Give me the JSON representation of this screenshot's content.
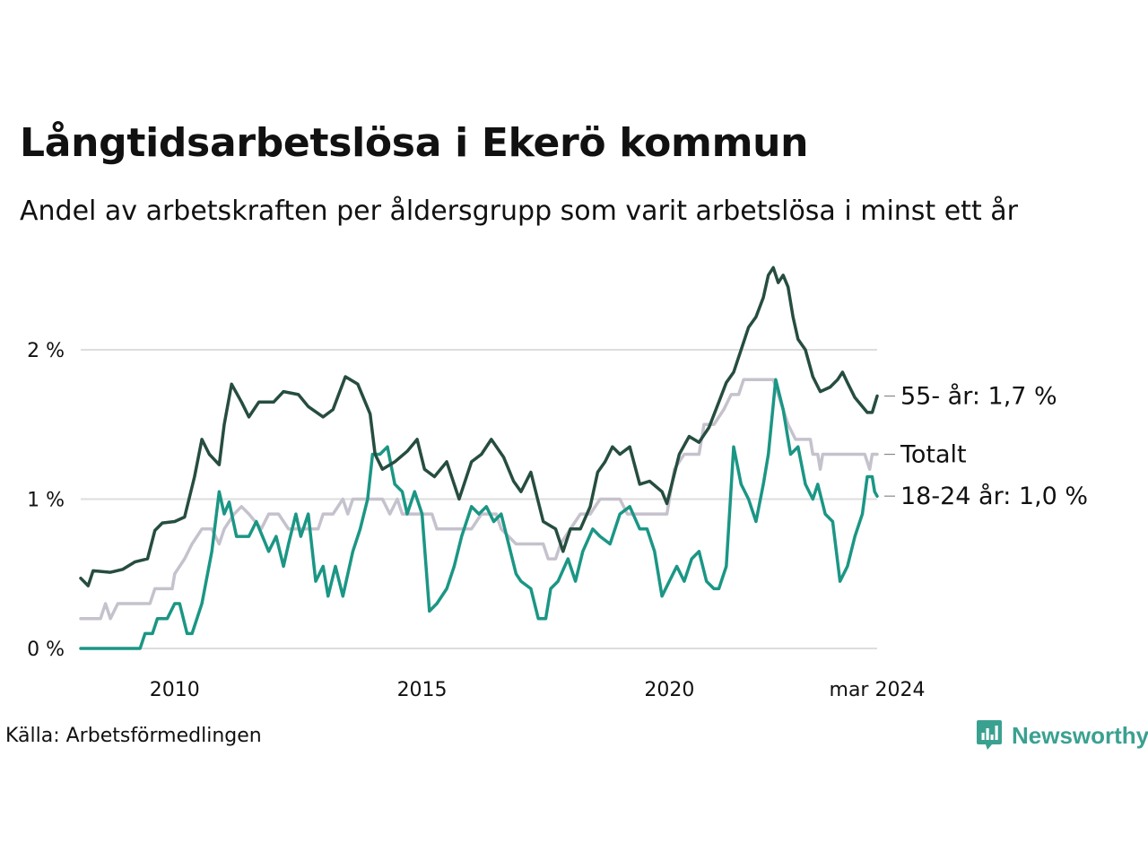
{
  "title": "Långtidsarbetslösa i Ekerö kommun",
  "subtitle": "Andel av arbetskraften per åldersgrupp som varit arbetslösa i minst ett år",
  "source": "Källa: Arbetsförmedlingen",
  "brand": "Newsworthy",
  "icon": "newsworthy-logo-icon",
  "colors": {
    "dark": "#264d40",
    "total": "#c5c2cd",
    "young": "#1b9685",
    "grid": "#dddddd",
    "brand": "#3aa191"
  },
  "chart_data": {
    "type": "line",
    "title": "Långtidsarbetslösa i Ekerö kommun",
    "xlabel": "",
    "ylabel": "",
    "x_unit": "years",
    "xlim": [
      2008.1,
      2024.2
    ],
    "ylim": [
      0,
      2.0
    ],
    "y_ticks": [
      {
        "value": 0,
        "label": "0 %"
      },
      {
        "value": 1,
        "label": "1 %"
      },
      {
        "value": 2,
        "label": "2 %"
      }
    ],
    "x_ticks": [
      {
        "value": 2010,
        "label": "2010"
      },
      {
        "value": 2015,
        "label": "2015"
      },
      {
        "value": 2020,
        "label": "2020"
      },
      {
        "value": 2024.2,
        "label": "mar 2024"
      }
    ],
    "grid": true,
    "series": [
      {
        "name": "55- år",
        "end_label": "55- år: 1,7 %",
        "color_key": "dark",
        "points": [
          [
            2008.1,
            0.47
          ],
          [
            2008.25,
            0.42
          ],
          [
            2008.35,
            0.52
          ],
          [
            2008.7,
            0.51
          ],
          [
            2008.95,
            0.53
          ],
          [
            2009.2,
            0.58
          ],
          [
            2009.45,
            0.6
          ],
          [
            2009.6,
            0.79
          ],
          [
            2009.75,
            0.84
          ],
          [
            2010.0,
            0.85
          ],
          [
            2010.2,
            0.88
          ],
          [
            2010.4,
            1.15
          ],
          [
            2010.55,
            1.4
          ],
          [
            2010.7,
            1.3
          ],
          [
            2010.9,
            1.23
          ],
          [
            2011.0,
            1.5
          ],
          [
            2011.15,
            1.77
          ],
          [
            2011.35,
            1.65
          ],
          [
            2011.5,
            1.55
          ],
          [
            2011.7,
            1.65
          ],
          [
            2012.0,
            1.65
          ],
          [
            2012.2,
            1.72
          ],
          [
            2012.5,
            1.7
          ],
          [
            2012.7,
            1.62
          ],
          [
            2013.0,
            1.55
          ],
          [
            2013.2,
            1.6
          ],
          [
            2013.45,
            1.82
          ],
          [
            2013.7,
            1.77
          ],
          [
            2013.95,
            1.57
          ],
          [
            2014.05,
            1.3
          ],
          [
            2014.2,
            1.2
          ],
          [
            2014.45,
            1.25
          ],
          [
            2014.7,
            1.32
          ],
          [
            2014.9,
            1.4
          ],
          [
            2015.05,
            1.2
          ],
          [
            2015.25,
            1.15
          ],
          [
            2015.5,
            1.25
          ],
          [
            2015.75,
            1.0
          ],
          [
            2016.0,
            1.25
          ],
          [
            2016.2,
            1.3
          ],
          [
            2016.4,
            1.4
          ],
          [
            2016.65,
            1.28
          ],
          [
            2016.85,
            1.12
          ],
          [
            2017.0,
            1.05
          ],
          [
            2017.2,
            1.18
          ],
          [
            2017.45,
            0.85
          ],
          [
            2017.7,
            0.8
          ],
          [
            2017.85,
            0.65
          ],
          [
            2018.0,
            0.8
          ],
          [
            2018.2,
            0.8
          ],
          [
            2018.4,
            0.95
          ],
          [
            2018.55,
            1.18
          ],
          [
            2018.7,
            1.25
          ],
          [
            2018.85,
            1.35
          ],
          [
            2019.0,
            1.3
          ],
          [
            2019.2,
            1.35
          ],
          [
            2019.4,
            1.1
          ],
          [
            2019.6,
            1.12
          ],
          [
            2019.85,
            1.05
          ],
          [
            2019.95,
            0.97
          ],
          [
            2020.2,
            1.3
          ],
          [
            2020.4,
            1.42
          ],
          [
            2020.6,
            1.38
          ],
          [
            2020.8,
            1.48
          ],
          [
            2021.0,
            1.65
          ],
          [
            2021.15,
            1.78
          ],
          [
            2021.3,
            1.85
          ],
          [
            2021.5,
            2.05
          ],
          [
            2021.6,
            2.15
          ],
          [
            2021.75,
            2.22
          ],
          [
            2021.9,
            2.35
          ],
          [
            2022.0,
            2.5
          ],
          [
            2022.1,
            2.55
          ],
          [
            2022.2,
            2.45
          ],
          [
            2022.3,
            2.5
          ],
          [
            2022.4,
            2.42
          ],
          [
            2022.5,
            2.22
          ],
          [
            2022.6,
            2.07
          ],
          [
            2022.75,
            2.0
          ],
          [
            2022.9,
            1.82
          ],
          [
            2023.05,
            1.72
          ],
          [
            2023.25,
            1.75
          ],
          [
            2023.4,
            1.8
          ],
          [
            2023.5,
            1.85
          ],
          [
            2023.6,
            1.78
          ],
          [
            2023.75,
            1.68
          ],
          [
            2023.9,
            1.62
          ],
          [
            2024.0,
            1.58
          ],
          [
            2024.1,
            1.58
          ],
          [
            2024.2,
            1.69
          ]
        ]
      },
      {
        "name": "Totalt",
        "end_label": "Totalt",
        "color_key": "total",
        "points": [
          [
            2008.1,
            0.2
          ],
          [
            2008.5,
            0.2
          ],
          [
            2008.6,
            0.3
          ],
          [
            2008.7,
            0.2
          ],
          [
            2008.85,
            0.3
          ],
          [
            2009.5,
            0.3
          ],
          [
            2009.6,
            0.4
          ],
          [
            2009.95,
            0.4
          ],
          [
            2010.0,
            0.5
          ],
          [
            2010.2,
            0.6
          ],
          [
            2010.35,
            0.7
          ],
          [
            2010.55,
            0.8
          ],
          [
            2010.75,
            0.8
          ],
          [
            2010.9,
            0.7
          ],
          [
            2011.0,
            0.8
          ],
          [
            2011.2,
            0.9
          ],
          [
            2011.35,
            0.95
          ],
          [
            2011.5,
            0.9
          ],
          [
            2011.75,
            0.8
          ],
          [
            2011.9,
            0.9
          ],
          [
            2012.1,
            0.9
          ],
          [
            2012.3,
            0.8
          ],
          [
            2012.9,
            0.8
          ],
          [
            2013.0,
            0.9
          ],
          [
            2013.2,
            0.9
          ],
          [
            2013.4,
            1.0
          ],
          [
            2013.5,
            0.9
          ],
          [
            2013.6,
            1.0
          ],
          [
            2014.0,
            1.0
          ],
          [
            2014.2,
            1.0
          ],
          [
            2014.35,
            0.9
          ],
          [
            2014.5,
            1.0
          ],
          [
            2014.6,
            0.9
          ],
          [
            2015.2,
            0.9
          ],
          [
            2015.3,
            0.8
          ],
          [
            2016.0,
            0.8
          ],
          [
            2016.2,
            0.9
          ],
          [
            2016.5,
            0.9
          ],
          [
            2016.6,
            0.8
          ],
          [
            2016.9,
            0.7
          ],
          [
            2017.0,
            0.7
          ],
          [
            2017.1,
            0.7
          ],
          [
            2017.45,
            0.7
          ],
          [
            2017.55,
            0.6
          ],
          [
            2017.7,
            0.6
          ],
          [
            2017.8,
            0.7
          ],
          [
            2018.0,
            0.8
          ],
          [
            2018.2,
            0.9
          ],
          [
            2018.4,
            0.9
          ],
          [
            2018.6,
            1.0
          ],
          [
            2019.0,
            1.0
          ],
          [
            2019.15,
            0.9
          ],
          [
            2019.95,
            0.9
          ],
          [
            2020.1,
            1.2
          ],
          [
            2020.3,
            1.3
          ],
          [
            2020.6,
            1.3
          ],
          [
            2020.7,
            1.5
          ],
          [
            2020.9,
            1.5
          ],
          [
            2021.1,
            1.6
          ],
          [
            2021.25,
            1.7
          ],
          [
            2021.4,
            1.7
          ],
          [
            2021.5,
            1.8
          ],
          [
            2022.1,
            1.8
          ],
          [
            2022.2,
            1.7
          ],
          [
            2022.4,
            1.5
          ],
          [
            2022.55,
            1.4
          ],
          [
            2022.85,
            1.4
          ],
          [
            2022.9,
            1.3
          ],
          [
            2023.0,
            1.3
          ],
          [
            2023.05,
            1.2
          ],
          [
            2023.1,
            1.3
          ],
          [
            2023.95,
            1.3
          ],
          [
            2024.05,
            1.2
          ],
          [
            2024.1,
            1.3
          ],
          [
            2024.2,
            1.3
          ]
        ]
      },
      {
        "name": "18-24 år",
        "end_label": "18-24 år: 1,0 %",
        "color_key": "young",
        "points": [
          [
            2008.1,
            0.0
          ],
          [
            2009.3,
            0.0
          ],
          [
            2009.4,
            0.1
          ],
          [
            2009.55,
            0.1
          ],
          [
            2009.65,
            0.2
          ],
          [
            2009.85,
            0.2
          ],
          [
            2010.0,
            0.3
          ],
          [
            2010.1,
            0.3
          ],
          [
            2010.25,
            0.1
          ],
          [
            2010.35,
            0.1
          ],
          [
            2010.55,
            0.3
          ],
          [
            2010.75,
            0.65
          ],
          [
            2010.9,
            1.05
          ],
          [
            2011.0,
            0.9
          ],
          [
            2011.1,
            0.98
          ],
          [
            2011.25,
            0.75
          ],
          [
            2011.5,
            0.75
          ],
          [
            2011.65,
            0.85
          ],
          [
            2011.9,
            0.65
          ],
          [
            2012.05,
            0.75
          ],
          [
            2012.2,
            0.55
          ],
          [
            2012.3,
            0.7
          ],
          [
            2012.45,
            0.9
          ],
          [
            2012.55,
            0.75
          ],
          [
            2012.7,
            0.9
          ],
          [
            2012.85,
            0.45
          ],
          [
            2013.0,
            0.55
          ],
          [
            2013.1,
            0.35
          ],
          [
            2013.25,
            0.55
          ],
          [
            2013.4,
            0.35
          ],
          [
            2013.6,
            0.65
          ],
          [
            2013.75,
            0.8
          ],
          [
            2013.9,
            1.0
          ],
          [
            2014.0,
            1.3
          ],
          [
            2014.15,
            1.3
          ],
          [
            2014.3,
            1.35
          ],
          [
            2014.45,
            1.1
          ],
          [
            2014.6,
            1.05
          ],
          [
            2014.7,
            0.9
          ],
          [
            2014.85,
            1.05
          ],
          [
            2015.0,
            0.9
          ],
          [
            2015.15,
            0.25
          ],
          [
            2015.3,
            0.3
          ],
          [
            2015.5,
            0.4
          ],
          [
            2015.65,
            0.55
          ],
          [
            2015.8,
            0.75
          ],
          [
            2016.0,
            0.95
          ],
          [
            2016.15,
            0.9
          ],
          [
            2016.3,
            0.95
          ],
          [
            2016.45,
            0.85
          ],
          [
            2016.6,
            0.9
          ],
          [
            2016.75,
            0.7
          ],
          [
            2016.9,
            0.5
          ],
          [
            2017.0,
            0.45
          ],
          [
            2017.2,
            0.4
          ],
          [
            2017.35,
            0.2
          ],
          [
            2017.5,
            0.2
          ],
          [
            2017.6,
            0.4
          ],
          [
            2017.75,
            0.45
          ],
          [
            2017.95,
            0.6
          ],
          [
            2018.1,
            0.45
          ],
          [
            2018.25,
            0.65
          ],
          [
            2018.45,
            0.8
          ],
          [
            2018.6,
            0.75
          ],
          [
            2018.8,
            0.7
          ],
          [
            2019.0,
            0.9
          ],
          [
            2019.2,
            0.95
          ],
          [
            2019.4,
            0.8
          ],
          [
            2019.55,
            0.8
          ],
          [
            2019.7,
            0.65
          ],
          [
            2019.85,
            0.35
          ],
          [
            2020.0,
            0.45
          ],
          [
            2020.15,
            0.55
          ],
          [
            2020.3,
            0.45
          ],
          [
            2020.45,
            0.6
          ],
          [
            2020.6,
            0.65
          ],
          [
            2020.75,
            0.45
          ],
          [
            2020.9,
            0.4
          ],
          [
            2021.0,
            0.4
          ],
          [
            2021.15,
            0.55
          ],
          [
            2021.3,
            1.35
          ],
          [
            2021.45,
            1.1
          ],
          [
            2021.6,
            1.0
          ],
          [
            2021.75,
            0.85
          ],
          [
            2021.9,
            1.1
          ],
          [
            2022.0,
            1.3
          ],
          [
            2022.15,
            1.8
          ],
          [
            2022.3,
            1.6
          ],
          [
            2022.45,
            1.3
          ],
          [
            2022.6,
            1.35
          ],
          [
            2022.75,
            1.1
          ],
          [
            2022.9,
            1.0
          ],
          [
            2023.0,
            1.1
          ],
          [
            2023.15,
            0.9
          ],
          [
            2023.3,
            0.85
          ],
          [
            2023.45,
            0.45
          ],
          [
            2023.6,
            0.55
          ],
          [
            2023.75,
            0.75
          ],
          [
            2023.9,
            0.9
          ],
          [
            2024.0,
            1.15
          ],
          [
            2024.1,
            1.15
          ],
          [
            2024.15,
            1.05
          ],
          [
            2024.2,
            1.02
          ]
        ]
      }
    ]
  }
}
